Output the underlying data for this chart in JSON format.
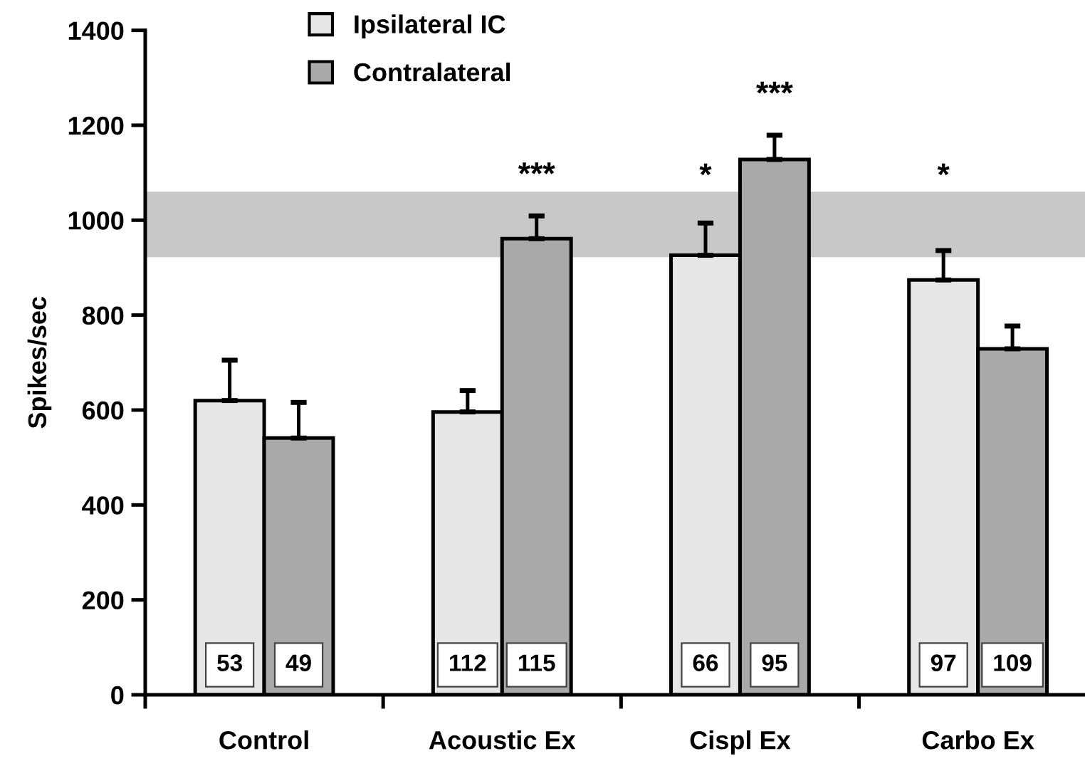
{
  "chart_data": {
    "type": "bar",
    "ylabel": "Spikes/sec",
    "categories": [
      "Control",
      "Acoustic Ex",
      "Cispl Ex",
      "Carbo Ex"
    ],
    "series": [
      {
        "name": "Ipsilateral IC",
        "color": "#e6e6e6",
        "values": [
          620,
          596,
          926,
          874
        ],
        "errors": [
          [
            620,
            705
          ],
          [
            596,
            641
          ],
          [
            926,
            994
          ],
          [
            874,
            936
          ]
        ]
      },
      {
        "name": "Contralateral",
        "color": "#a9a9a9",
        "values": [
          541,
          961,
          1128,
          729
        ],
        "errors": [
          [
            541,
            616
          ],
          [
            961,
            1009
          ],
          [
            1128,
            1179
          ],
          [
            729,
            777
          ]
        ]
      }
    ],
    "ylim": [
      0,
      1400
    ],
    "yticks": [
      0,
      200,
      400,
      600,
      800,
      1000,
      1200,
      1400
    ],
    "bands": [
      {
        "axis": "y",
        "from": 922,
        "to": 1060,
        "color": "#c8c8c8"
      }
    ],
    "annotations": [
      "53",
      "49",
      "112",
      "115",
      "66",
      "95",
      "97",
      "109",
      "***",
      "*",
      "***",
      "*"
    ],
    "legend": "top left",
    "grid": false
  }
}
